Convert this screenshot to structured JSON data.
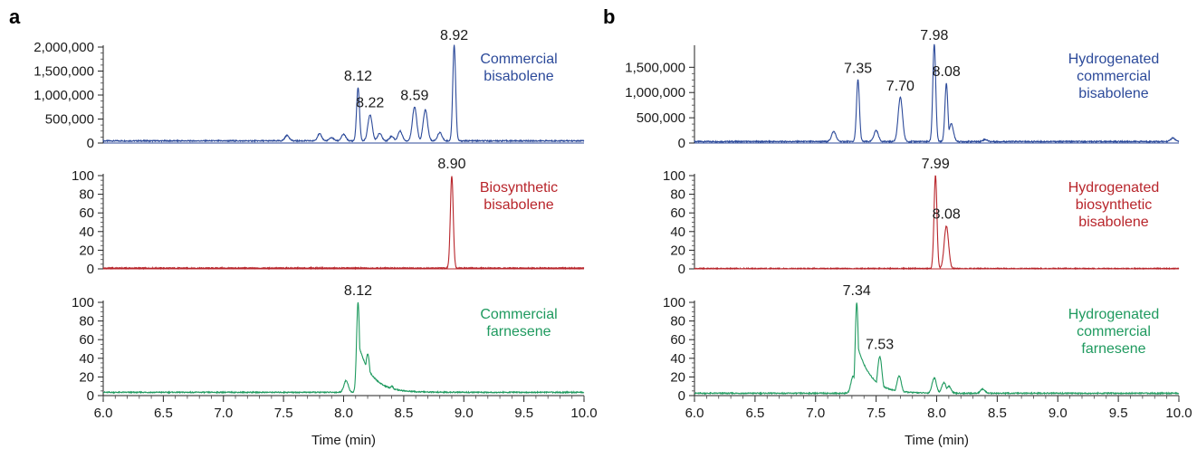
{
  "chart_data": [
    {
      "panel": "a",
      "type": "line",
      "xlabel": "Time (min)",
      "xlim": [
        6.0,
        10.0
      ],
      "xticks": [
        "6.0",
        "6.5",
        "7.0",
        "7.5",
        "8.0",
        "8.5",
        "9.0",
        "9.5",
        "10.0"
      ],
      "series": [
        {
          "name": [
            "Commercial",
            "bisabolene"
          ],
          "color": "#2c4a9a",
          "ylim": [
            0,
            2000000
          ],
          "yticks": [
            0,
            500000,
            1000000,
            1500000,
            2000000
          ],
          "ytick_labels": [
            "0",
            "500,000",
            "1,000,000",
            "1,500,000",
            "2,000,000"
          ],
          "baseline": 45000,
          "points": [
            [
              6.0,
              45000
            ],
            [
              7.5,
              50000
            ],
            [
              7.53,
              160000
            ],
            [
              7.8,
              190000
            ],
            [
              7.9,
              110000
            ],
            [
              8.0,
              180000
            ],
            [
              8.12,
              1150000
            ],
            [
              8.22,
              590000
            ],
            [
              8.3,
              200000
            ],
            [
              8.4,
              140000
            ],
            [
              8.47,
              250000
            ],
            [
              8.59,
              750000
            ],
            [
              8.68,
              690000
            ],
            [
              8.8,
              220000
            ],
            [
              8.92,
              2040000
            ],
            [
              9.2,
              70000
            ],
            [
              10.0,
              60000
            ]
          ],
          "peak_labels": [
            {
              "x": 8.12,
              "y": 1150000,
              "label": "8.12"
            },
            {
              "x": 8.22,
              "y": 590000,
              "label": "8.22"
            },
            {
              "x": 8.59,
              "y": 750000,
              "label": "8.59"
            },
            {
              "x": 8.92,
              "y": 2040000,
              "label": "8.92"
            }
          ]
        },
        {
          "name": [
            "Biosynthetic",
            "bisabolene"
          ],
          "color": "#b8252b",
          "ylim": [
            0,
            100
          ],
          "yticks": [
            0,
            20,
            40,
            60,
            80,
            100
          ],
          "ytick_labels": [
            "0",
            "20",
            "40",
            "60",
            "80",
            "100"
          ],
          "baseline": 0.8,
          "points": [
            [
              6.0,
              0.8
            ],
            [
              7.0,
              1.0
            ],
            [
              7.8,
              1.5
            ],
            [
              8.9,
              100
            ],
            [
              9.5,
              1.5
            ],
            [
              9.8,
              2.5
            ],
            [
              10.0,
              1.0
            ]
          ],
          "peak_labels": [
            {
              "x": 8.9,
              "y": 100,
              "label": "8.90"
            }
          ]
        },
        {
          "name": [
            "Commercial",
            "farnesene"
          ],
          "color": "#1f9a5f",
          "ylim": [
            0,
            100
          ],
          "yticks": [
            0,
            20,
            40,
            60,
            80,
            100
          ],
          "ytick_labels": [
            "0",
            "20",
            "40",
            "60",
            "80",
            "100"
          ],
          "baseline": 3.5,
          "points": [
            [
              6.0,
              3.5
            ],
            [
              8.02,
              16
            ],
            [
              8.12,
              100
            ],
            [
              8.2,
              45
            ],
            [
              8.4,
              10
            ],
            [
              8.7,
              5
            ],
            [
              10.0,
              4
            ]
          ],
          "peak_labels": [
            {
              "x": 8.12,
              "y": 100,
              "label": "8.12"
            }
          ]
        }
      ]
    },
    {
      "panel": "b",
      "type": "line",
      "xlabel": "Time (min)",
      "xlim": [
        6.0,
        10.0
      ],
      "xticks": [
        "6.0",
        "6.5",
        "7.0",
        "7.5",
        "8.0",
        "8.5",
        "9.0",
        "9.5",
        "10.0"
      ],
      "series": [
        {
          "name": [
            "Hydrogenated",
            "commercial",
            "bisabolene"
          ],
          "color": "#2c4a9a",
          "ylim": [
            0,
            1900000
          ],
          "yticks": [
            0,
            500000,
            1000000,
            1500000
          ],
          "ytick_labels": [
            "0",
            "500,000",
            "1,000,000",
            "1,500,000"
          ],
          "baseline": 30000,
          "points": [
            [
              6.0,
              30000
            ],
            [
              7.15,
              230000
            ],
            [
              7.35,
              1250000
            ],
            [
              7.5,
              250000
            ],
            [
              7.7,
              900000
            ],
            [
              7.98,
              1960000
            ],
            [
              8.08,
              1180000
            ],
            [
              8.12,
              380000
            ],
            [
              8.4,
              70000
            ],
            [
              9.95,
              100000
            ],
            [
              10.0,
              30000
            ]
          ],
          "peak_labels": [
            {
              "x": 7.35,
              "y": 1250000,
              "label": "7.35"
            },
            {
              "x": 7.7,
              "y": 900000,
              "label": "7.70"
            },
            {
              "x": 7.98,
              "y": 1960000,
              "label": "7.98"
            },
            {
              "x": 8.08,
              "y": 1180000,
              "label": "8.08"
            }
          ]
        },
        {
          "name": [
            "Hydrogenated",
            "biosynthetic",
            "bisabolene"
          ],
          "color": "#b8252b",
          "ylim": [
            0,
            100
          ],
          "yticks": [
            0,
            20,
            40,
            60,
            80,
            100
          ],
          "ytick_labels": [
            "0",
            "20",
            "40",
            "60",
            "80",
            "100"
          ],
          "baseline": 0.3,
          "points": [
            [
              6.0,
              0.3
            ],
            [
              7.99,
              100
            ],
            [
              8.08,
              46
            ],
            [
              10.0,
              0.3
            ]
          ],
          "peak_labels": [
            {
              "x": 7.99,
              "y": 100,
              "label": "7.99"
            },
            {
              "x": 8.08,
              "y": 46,
              "label": "8.08"
            }
          ]
        },
        {
          "name": [
            "Hydrogenated",
            "commercial",
            "farnesene"
          ],
          "color": "#1f9a5f",
          "ylim": [
            0,
            100
          ],
          "yticks": [
            0,
            20,
            40,
            60,
            80,
            100
          ],
          "ytick_labels": [
            "0",
            "20",
            "40",
            "60",
            "80",
            "100"
          ],
          "baseline": 2.5,
          "points": [
            [
              6.0,
              2.5
            ],
            [
              7.31,
              21
            ],
            [
              7.34,
              100
            ],
            [
              7.53,
              42
            ],
            [
              7.69,
              21
            ],
            [
              7.98,
              19
            ],
            [
              8.06,
              14
            ],
            [
              8.1,
              10
            ],
            [
              8.38,
              7
            ],
            [
              10.0,
              2.5
            ]
          ],
          "peak_labels": [
            {
              "x": 7.34,
              "y": 100,
              "label": "7.34"
            },
            {
              "x": 7.53,
              "y": 42,
              "label": "7.53"
            }
          ]
        }
      ]
    }
  ]
}
